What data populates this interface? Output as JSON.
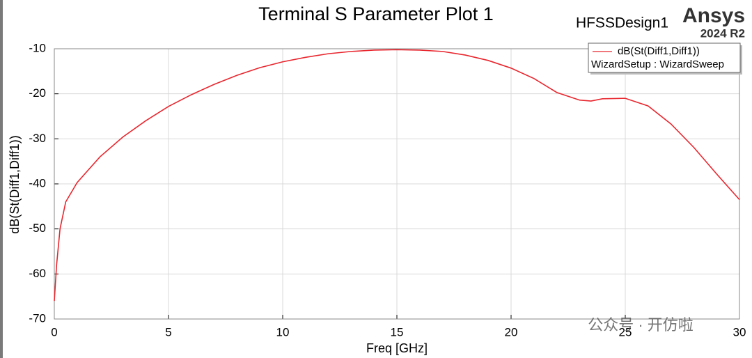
{
  "chart_data": {
    "type": "line",
    "title": "Terminal S Parameter Plot 1",
    "design_name": "HFSSDesign1",
    "brand": "Ansys",
    "version": "2024 R2",
    "legend_subtitle": "WizardSetup : WizardSweep",
    "watermark": "公众号 · 开仿啦",
    "x_label": "Freq [GHz]",
    "y_label": "dB(St(Diff1,Diff1))",
    "x": [
      0,
      0.1,
      0.25,
      0.5,
      1,
      2,
      3,
      4,
      5,
      6,
      7,
      8,
      9,
      10,
      11,
      12,
      13,
      14,
      15,
      16,
      17,
      18,
      19,
      20,
      21,
      22,
      23,
      23.5,
      24,
      25,
      26,
      27,
      28,
      29,
      30
    ],
    "series": [
      {
        "name": "dB(St(Diff1,Diff1))",
        "color": "#e8262e",
        "values": [
          -66,
          -58,
          -50,
          -44,
          -39.7,
          -34,
          -29.6,
          -26,
          -22.8,
          -20.2,
          -17.9,
          -15.9,
          -14.2,
          -12.9,
          -11.9,
          -11.1,
          -10.6,
          -10.3,
          -10.2,
          -10.3,
          -10.6,
          -11.4,
          -12.6,
          -14.3,
          -16.6,
          -19.7,
          -21.4,
          -21.6,
          -21.1,
          -21,
          -22.7,
          -26.7,
          -31.9,
          -37.8,
          -43.5
        ]
      }
    ],
    "xlim": [
      0,
      30
    ],
    "xticks": [
      0,
      5,
      10,
      15,
      20,
      25,
      30
    ],
    "ylim": [
      -70,
      -10
    ],
    "yticks": [
      -70,
      -60,
      -50,
      -40,
      -30,
      -20,
      -10
    ],
    "grid": true,
    "legend_position": "upper right"
  }
}
